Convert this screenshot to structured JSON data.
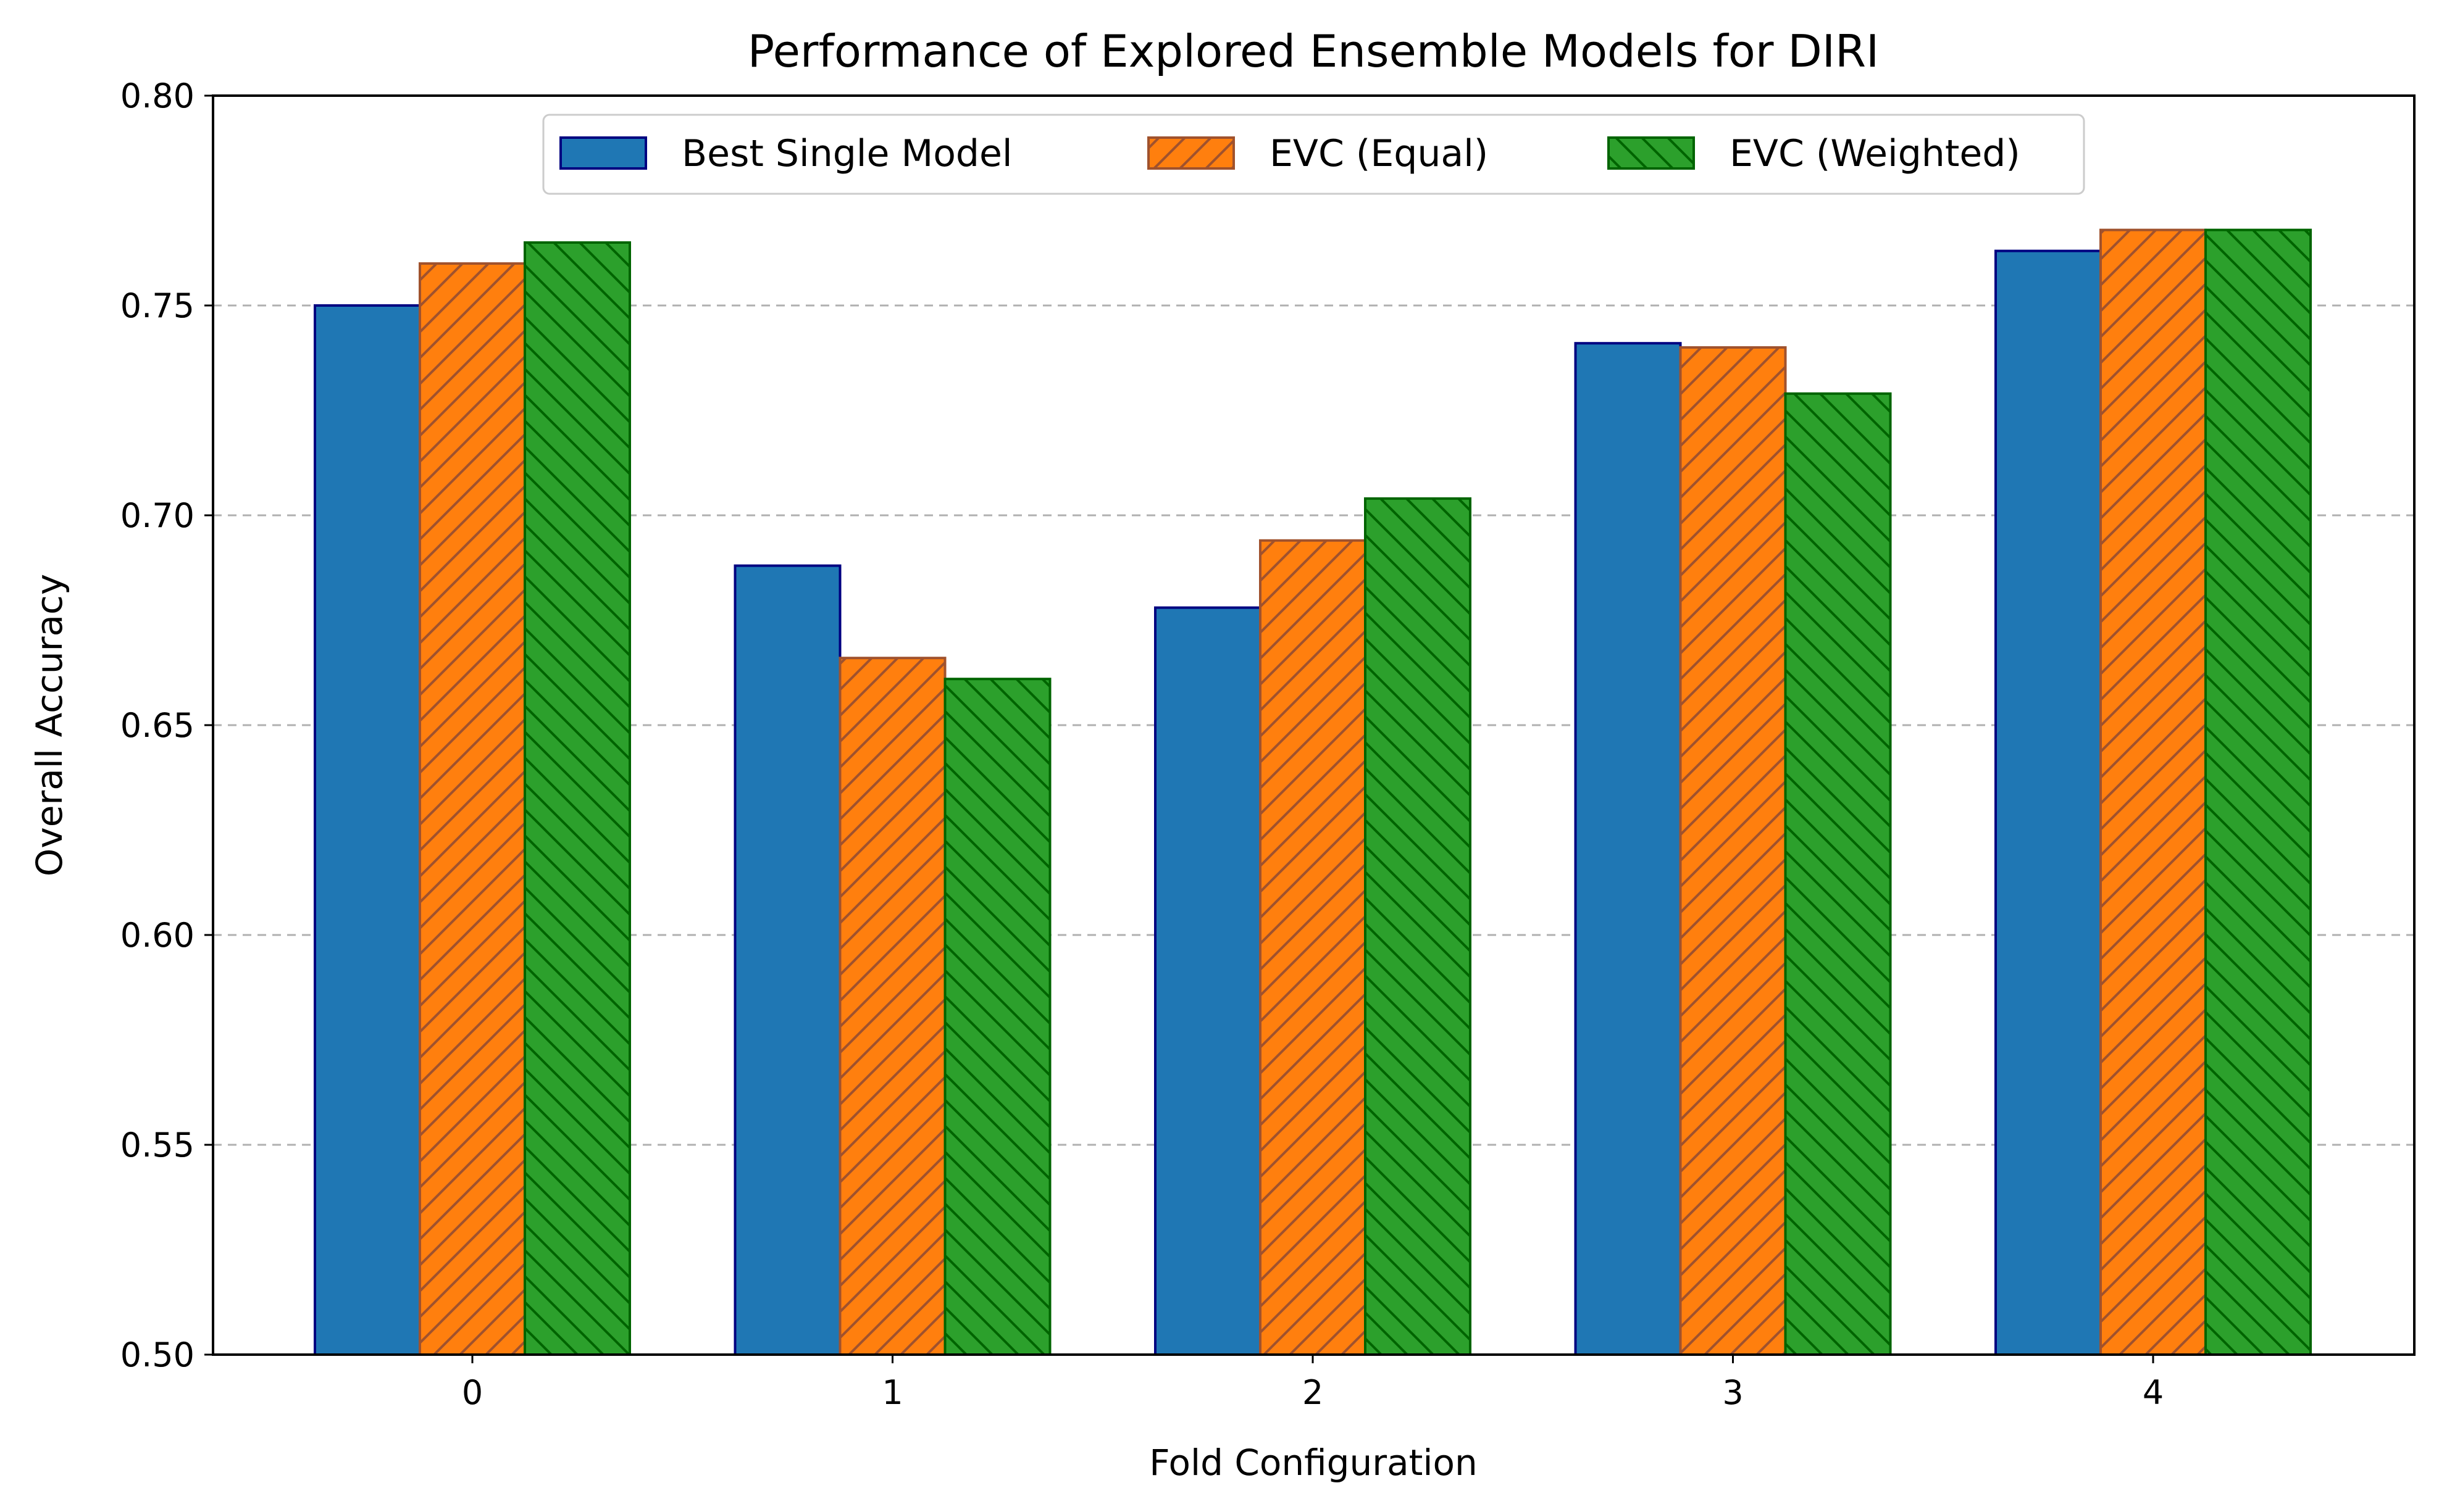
{
  "chart_data": {
    "type": "bar",
    "title": "Performance of Explored Ensemble Models for DIRI",
    "xlabel": "Fold Configuration",
    "ylabel": "Overall Accuracy",
    "categories": [
      "0",
      "1",
      "2",
      "3",
      "4"
    ],
    "ylim": [
      0.5,
      0.8
    ],
    "yticks": [
      "0.50",
      "0.55",
      "0.60",
      "0.65",
      "0.70",
      "0.75",
      "0.80"
    ],
    "grid": "y-dashed",
    "legend_position": "top-center",
    "series": [
      {
        "name": "Best Single Model",
        "values": [
          0.75,
          0.688,
          0.678,
          0.741,
          0.763
        ],
        "fill": "#1f77b4",
        "edge": "#000080",
        "hatch": "none"
      },
      {
        "name": "EVC (Equal)",
        "values": [
          0.76,
          0.666,
          0.694,
          0.74,
          0.768
        ],
        "fill": "#ff7f0e",
        "edge": "#a0522d",
        "hatch": "forward"
      },
      {
        "name": "EVC (Weighted)",
        "values": [
          0.765,
          0.661,
          0.704,
          0.729,
          0.768
        ],
        "fill": "#2ca02c",
        "edge": "#006400",
        "hatch": "backward"
      }
    ]
  }
}
